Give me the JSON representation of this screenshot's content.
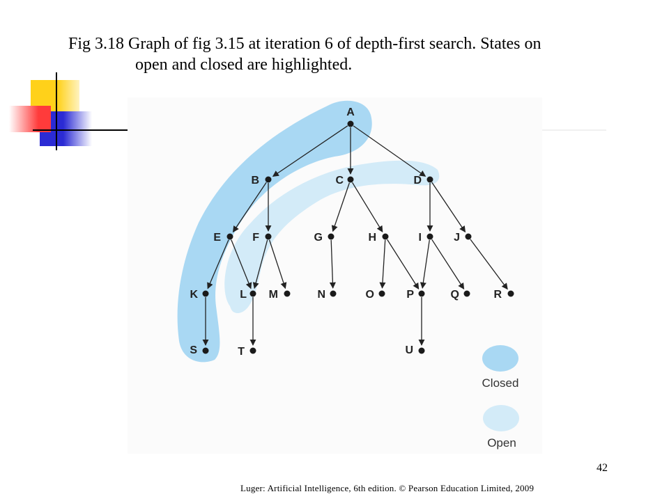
{
  "slide": {
    "title_line1": "Fig 3.18 Graph of fig 3.15 at iteration 6 of depth-first search. States on",
    "title_line2": "open and closed are highlighted.",
    "page_number": "42",
    "footer": "Luger:  Artificial  Intelligence,  6th edition.  © Pearson Education  Limited,  2009"
  },
  "colors": {
    "closed": "#a9d8f3",
    "open": "#d3ebf8",
    "node": "#1a1a1a",
    "edge": "#222222",
    "deco_yellow": "#ffd11a",
    "deco_red": "#ff3b3b",
    "deco_blue": "#2b2bd4"
  },
  "graph": {
    "nodes": [
      "A",
      "B",
      "C",
      "D",
      "E",
      "F",
      "G",
      "H",
      "I",
      "J",
      "K",
      "L",
      "M",
      "N",
      "O",
      "P",
      "Q",
      "R",
      "S",
      "T",
      "U"
    ],
    "edges": [
      [
        "A",
        "B"
      ],
      [
        "A",
        "C"
      ],
      [
        "A",
        "D"
      ],
      [
        "B",
        "E"
      ],
      [
        "B",
        "F"
      ],
      [
        "C",
        "G"
      ],
      [
        "C",
        "H"
      ],
      [
        "D",
        "I"
      ],
      [
        "D",
        "J"
      ],
      [
        "E",
        "K"
      ],
      [
        "E",
        "L"
      ],
      [
        "F",
        "L"
      ],
      [
        "F",
        "M"
      ],
      [
        "G",
        "N"
      ],
      [
        "H",
        "O"
      ],
      [
        "H",
        "P"
      ],
      [
        "I",
        "P"
      ],
      [
        "I",
        "Q"
      ],
      [
        "J",
        "R"
      ],
      [
        "K",
        "S"
      ],
      [
        "L",
        "T"
      ],
      [
        "P",
        "U"
      ]
    ],
    "closed": [
      "A",
      "B",
      "E",
      "K",
      "S"
    ],
    "open": [
      "C",
      "F",
      "L"
    ]
  },
  "legend": {
    "closed_label": "Closed",
    "open_label": "Open"
  }
}
